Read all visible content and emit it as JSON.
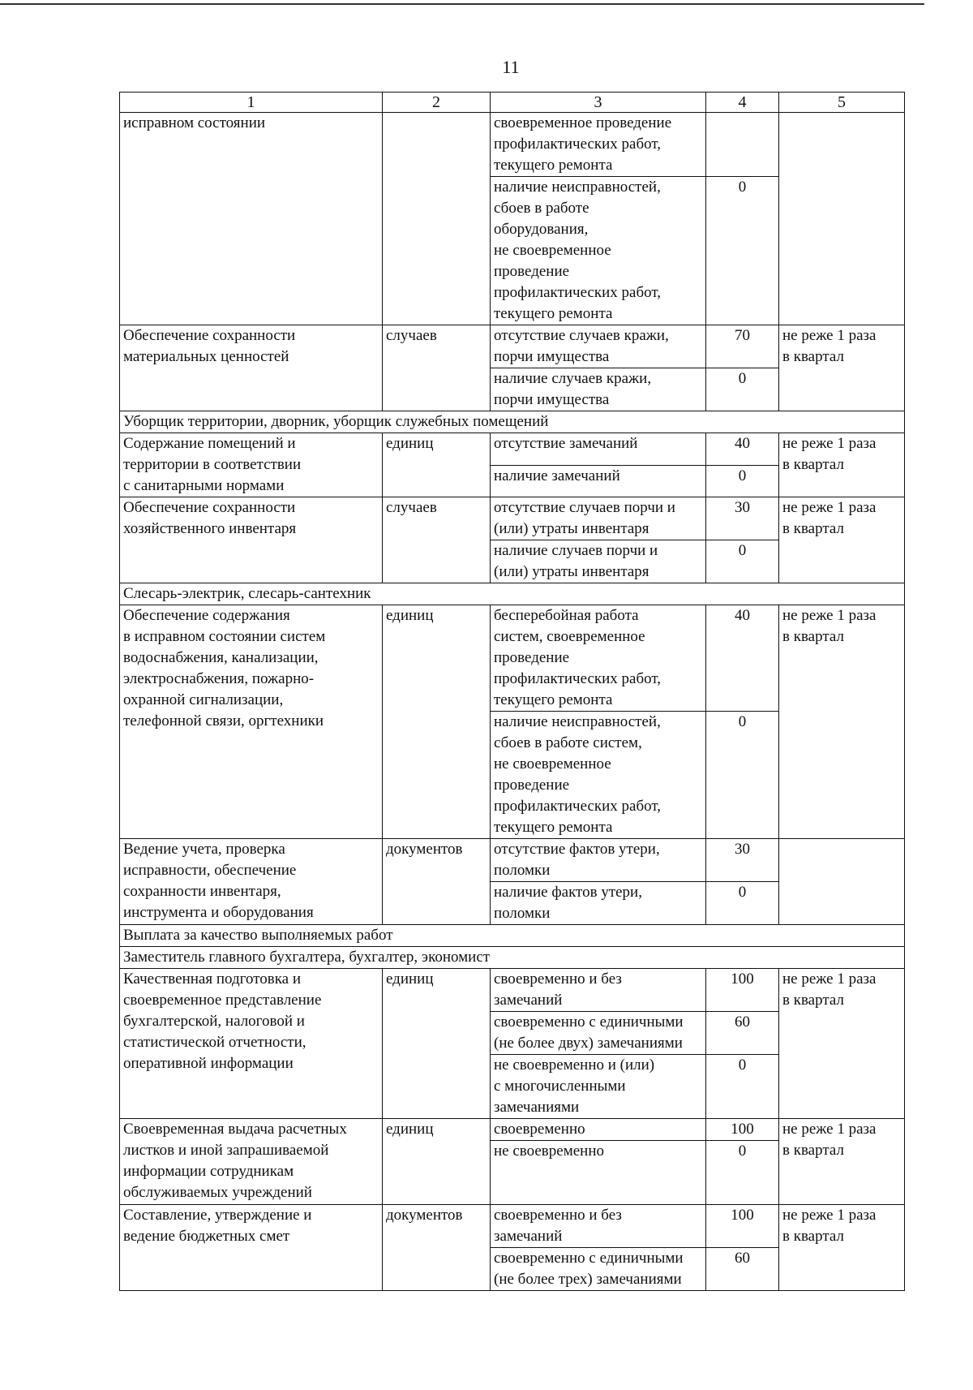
{
  "page_number": "11",
  "header": [
    "1",
    "2",
    "3",
    "4",
    "5"
  ],
  "rows": [
    {
      "type": "group",
      "name": "исправном состоянии",
      "unit": "",
      "period": "",
      "criteria": [
        {
          "text": "своевременное проведение\nпрофилактических работ,\nтекущего ремонта",
          "points": ""
        },
        {
          "text": "наличие неисправностей,\nсбоев в работе\nоборудования,\nне своевременное\nпроведение\nпрофилактических работ,\nтекущего ремонта",
          "points": "0"
        }
      ]
    },
    {
      "type": "group",
      "name": "Обеспечение сохранности\nматериальных ценностей",
      "unit": "случаев",
      "period": "не реже 1 раза\nв квартал",
      "criteria": [
        {
          "text": "отсутствие случаев кражи,\nпорчи имущества",
          "points": "70"
        },
        {
          "text": "наличие случаев кражи,\nпорчи имущества",
          "points": "0"
        }
      ]
    },
    {
      "type": "section",
      "text": "Уборщик территории, дворник, уборщик служебных помещений"
    },
    {
      "type": "group",
      "name": "Содержание помещений и\nтерритории в соответствии\nс санитарными нормами",
      "unit": "единиц",
      "period": "не реже 1 раза\nв квартал",
      "criteria": [
        {
          "text": "отсутствие замечаний",
          "points": "40"
        },
        {
          "text": "наличие замечаний\n ",
          "points": "0"
        }
      ]
    },
    {
      "type": "group",
      "name": "Обеспечение сохранности\nхозяйственного инвентаря",
      "unit": "случаев",
      "period": "не реже 1 раза\nв квартал",
      "criteria": [
        {
          "text": "отсутствие случаев порчи и\n(или) утраты инвентаря",
          "points": "30"
        },
        {
          "text": "наличие случаев порчи и\n(или) утраты инвентаря",
          "points": "0"
        }
      ]
    },
    {
      "type": "section",
      "text": "Слесарь-электрик, слесарь-сантехник"
    },
    {
      "type": "group",
      "name": "Обеспечение содержания\nв исправном состоянии систем\nводоснабжения, канализации,\nэлектроснабжения, пожарно-\nохранной сигнализации,\nтелефонной связи, оргтехники",
      "unit": "единиц",
      "period": "не реже 1 раза\nв квартал",
      "criteria": [
        {
          "text": "бесперебойная работа\nсистем, своевременное\nпроведение\nпрофилактических работ,\nтекущего ремонта",
          "points": "40"
        },
        {
          "text": "наличие неисправностей,\nсбоев в работе систем,\nне своевременное\nпроведение\nпрофилактических работ,\nтекущего ремонта",
          "points": "0"
        }
      ]
    },
    {
      "type": "group",
      "name": "Ведение учета, проверка\nисправности, обеспечение\nсохранности инвентаря,\nинструмента и оборудования",
      "unit": "документов",
      "period": "",
      "criteria": [
        {
          "text": "отсутствие фактов утери,\nполомки",
          "points": "30"
        },
        {
          "text": "наличие фактов утери,\nполомки",
          "points": "0"
        }
      ]
    },
    {
      "type": "section",
      "text": "Выплата за качество выполняемых работ"
    },
    {
      "type": "section",
      "text": "Заместитель главного бухгалтера, бухгалтер, экономист"
    },
    {
      "type": "group",
      "name": "Качественная подготовка и\nсвоевременное представление\nбухгалтерской, налоговой и\nстатистической отчетности,\nоперативной информации",
      "unit": "единиц",
      "period": "не реже 1 раза\nв квартал",
      "criteria": [
        {
          "text": "своевременно и без\nзамечаний",
          "points": "100"
        },
        {
          "text": "своевременно с единичными\n(не более двух) замечаниями",
          "points": "60"
        },
        {
          "text": "не своевременно и (или)\nс многочисленными\nзамечаниями",
          "points": "0"
        }
      ]
    },
    {
      "type": "group",
      "name": "Своевременная выдача расчетных\nлистков и иной запрашиваемой\nинформации сотрудникам\nобслуживаемых учреждений",
      "unit": "единиц",
      "period": "не реже 1 раза\nв квартал",
      "criteria": [
        {
          "text": "своевременно",
          "points": "100"
        },
        {
          "text": "не своевременно\n\n\n",
          "points": "0"
        }
      ]
    },
    {
      "type": "group",
      "name": "Составление, утверждение и\nведение бюджетных смет",
      "unit": "документов",
      "period": "не реже 1 раза\nв квартал",
      "criteria": [
        {
          "text": "своевременно и без\nзамечаний",
          "points": "100"
        },
        {
          "text": "своевременно с единичными\n(не более трех) замечаниями",
          "points": "60"
        }
      ]
    }
  ]
}
